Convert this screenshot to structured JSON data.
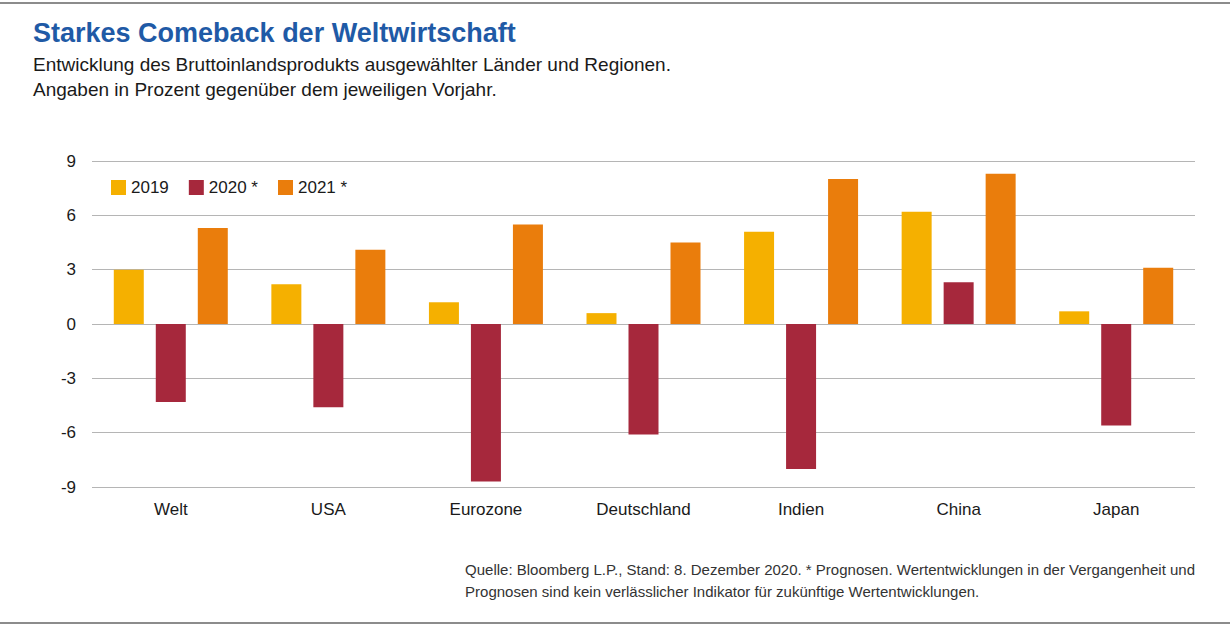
{
  "chart_data": {
    "type": "bar",
    "title": "Starkes Comeback der Weltwirtschaft",
    "subtitle": [
      "Entwicklung des Bruttoinlandsprodukts ausgewählter Länder und Regionen.",
      "Angaben in Prozent gegenüber dem jeweiligen Vorjahr."
    ],
    "note": [
      "Quelle: Bloomberg L.P., Stand: 8. Dezember 2020. * Prognosen. Wertentwicklungen in der Vergangenheit und",
      "Prognosen sind kein verlässlicher Indikator für zukünftige Wertentwicklungen."
    ],
    "categories": [
      "Welt",
      "USA",
      "Eurozone",
      "Deutschland",
      "Indien",
      "China",
      "Japan"
    ],
    "series": [
      {
        "name": "2019",
        "color": "#f5b000",
        "values": [
          3.0,
          2.2,
          1.2,
          0.6,
          5.1,
          6.2,
          0.7
        ]
      },
      {
        "name": "2020 *",
        "color": "#a6283c",
        "values": [
          -4.3,
          -4.6,
          -8.7,
          -6.1,
          -8.0,
          2.3,
          -5.6
        ]
      },
      {
        "name": "2021 *",
        "color": "#ea7d0c",
        "values": [
          5.3,
          4.1,
          5.5,
          4.5,
          8.0,
          8.3,
          3.1
        ]
      }
    ],
    "ylim": [
      -9,
      9
    ],
    "yticks": [
      -9,
      -6,
      -3,
      0,
      3,
      6,
      9
    ],
    "grid": true,
    "legend": "top-left"
  }
}
